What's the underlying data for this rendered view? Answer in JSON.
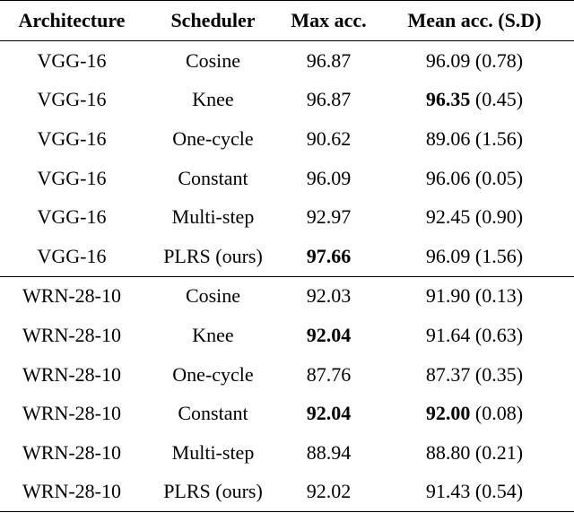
{
  "table": {
    "header": [
      "Architecture",
      "Scheduler",
      "Max acc.",
      "Mean acc. (S.D)"
    ],
    "groups": [
      [
        {
          "architecture": "VGG-16",
          "scheduler": "Cosine",
          "max_acc": "96.87",
          "mean_acc": "96.09",
          "sd": "(0.78)",
          "bold": []
        },
        {
          "architecture": "VGG-16",
          "scheduler": "Knee",
          "max_acc": "96.87",
          "mean_acc": "96.35",
          "sd": "(0.45)",
          "bold": [
            "mean_acc"
          ]
        },
        {
          "architecture": "VGG-16",
          "scheduler": "One-cycle",
          "max_acc": "90.62",
          "mean_acc": "89.06",
          "sd": "(1.56)",
          "bold": []
        },
        {
          "architecture": "VGG-16",
          "scheduler": "Constant",
          "max_acc": "96.09",
          "mean_acc": "96.06",
          "sd": "(0.05)",
          "bold": []
        },
        {
          "architecture": "VGG-16",
          "scheduler": "Multi-step",
          "max_acc": "92.97",
          "mean_acc": "92.45",
          "sd": "(0.90)",
          "bold": []
        },
        {
          "architecture": "VGG-16",
          "scheduler": "PLRS (ours)",
          "max_acc": "97.66",
          "mean_acc": "96.09",
          "sd": "(1.56)",
          "bold": [
            "max_acc"
          ]
        }
      ],
      [
        {
          "architecture": "WRN-28-10",
          "scheduler": "Cosine",
          "max_acc": "92.03",
          "mean_acc": "91.90",
          "sd": "(0.13)",
          "bold": []
        },
        {
          "architecture": "WRN-28-10",
          "scheduler": "Knee",
          "max_acc": "92.04",
          "mean_acc": "91.64",
          "sd": "(0.63)",
          "bold": [
            "max_acc"
          ]
        },
        {
          "architecture": "WRN-28-10",
          "scheduler": "One-cycle",
          "max_acc": "87.76",
          "mean_acc": "87.37",
          "sd": "(0.35)",
          "bold": []
        },
        {
          "architecture": "WRN-28-10",
          "scheduler": "Constant",
          "max_acc": "92.04",
          "mean_acc": "92.00",
          "sd": "(0.08)",
          "bold": [
            "max_acc",
            "mean_acc"
          ]
        },
        {
          "architecture": "WRN-28-10",
          "scheduler": "Multi-step",
          "max_acc": "88.94",
          "mean_acc": "88.80",
          "sd": "(0.21)",
          "bold": []
        },
        {
          "architecture": "WRN-28-10",
          "scheduler": "PLRS (ours)",
          "max_acc": "92.02",
          "mean_acc": "91.43",
          "sd": "(0.54)",
          "bold": []
        }
      ]
    ]
  }
}
